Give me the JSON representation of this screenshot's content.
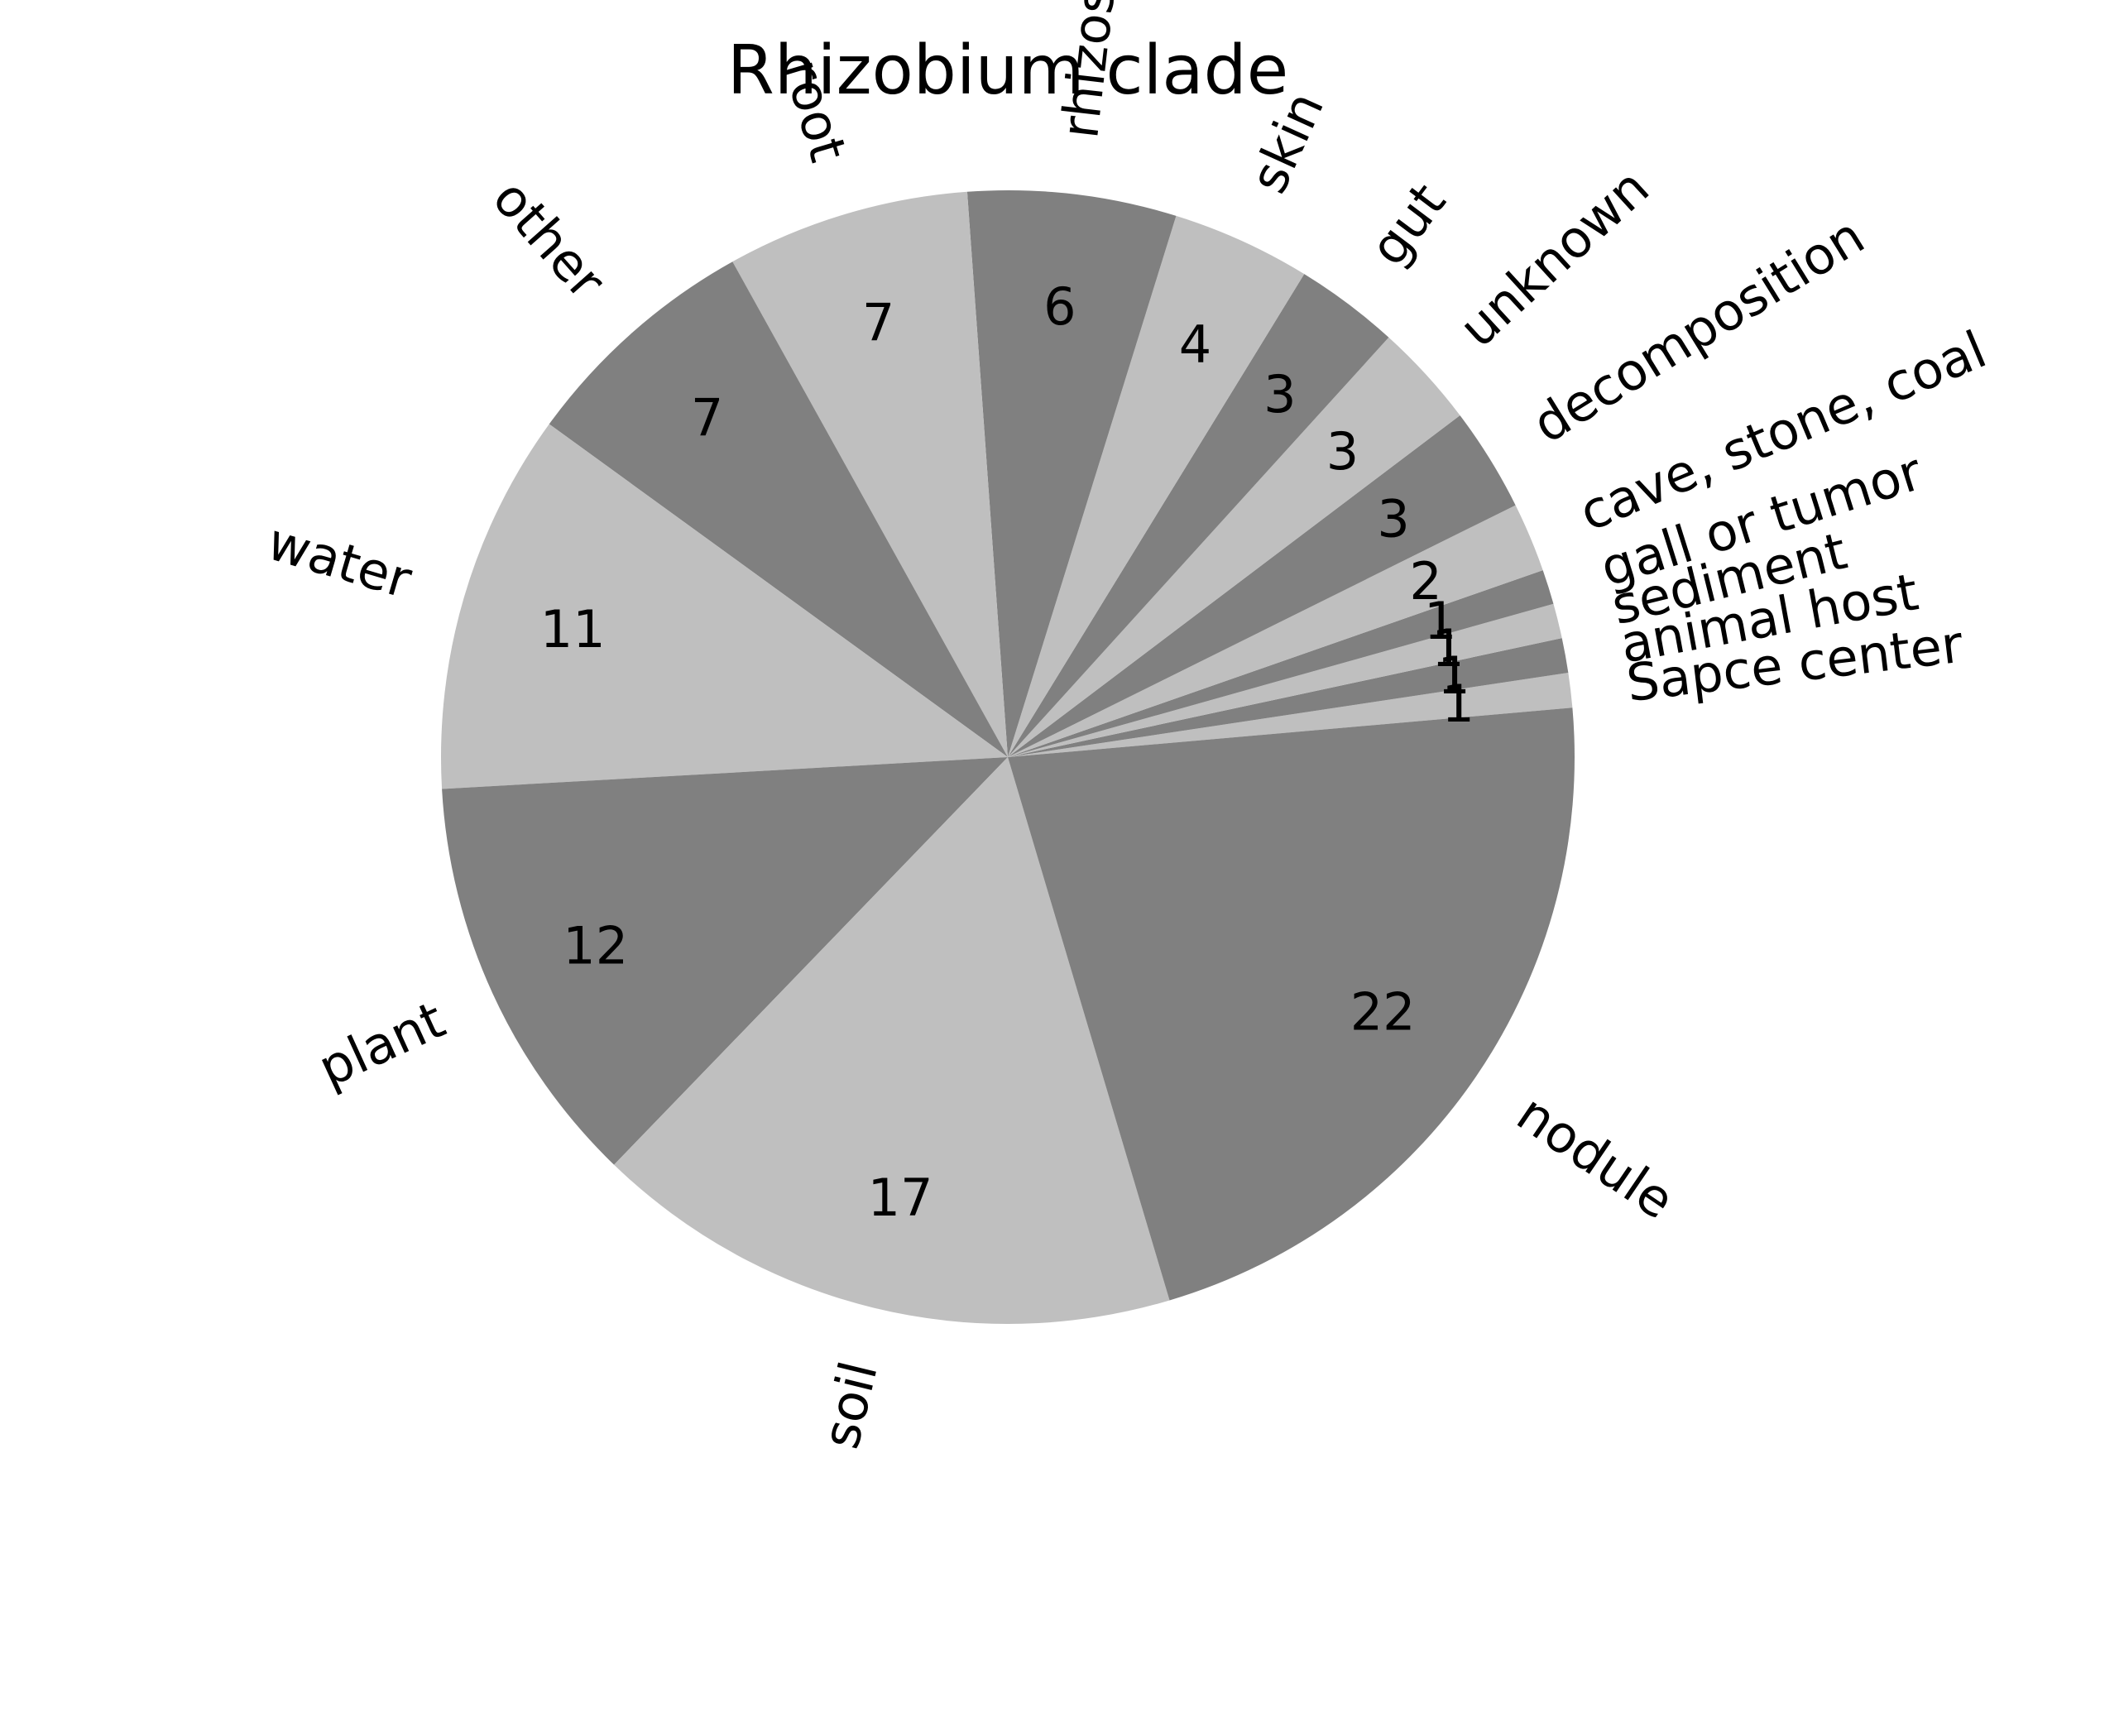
{
  "chart_data": {
    "type": "pie",
    "title": "Rhizobium clade",
    "categories": [
      "Sapce center",
      "animal host",
      "sediment",
      "gall or tumor",
      "cave, stone, coal",
      "decomposition",
      "unknown",
      "gut",
      "skin",
      "rhizosphere",
      "root",
      "other",
      "water",
      "plant",
      "soil",
      "nodule"
    ],
    "values": [
      1,
      1,
      1,
      1,
      2,
      3,
      3,
      3,
      4,
      6,
      7,
      7,
      11,
      12,
      17,
      22
    ],
    "value_labels": [
      "1",
      "1",
      "1",
      "1",
      "2",
      "3",
      "3",
      "3",
      "4",
      "6",
      "7",
      "7",
      "11",
      "12",
      "17",
      "22"
    ],
    "legend": "none",
    "colors": [
      "#bfbfbf",
      "#808080"
    ]
  }
}
